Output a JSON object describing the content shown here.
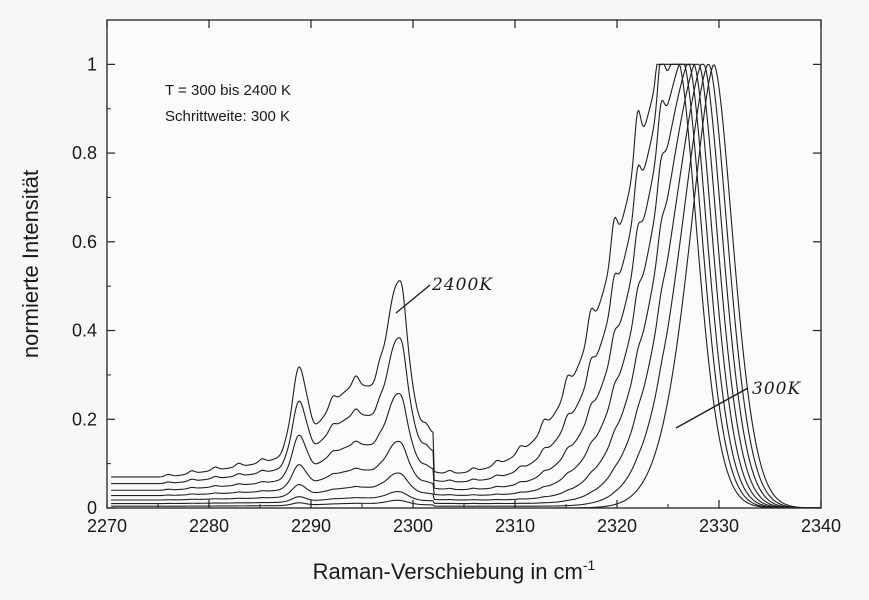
{
  "chart_data": {
    "type": "line",
    "title": "",
    "xlabel": "Raman-Verschiebung in cm",
    "xlabel_superscript": "-1",
    "ylabel": "normierte Intensität",
    "xlim": [
      2270,
      2340
    ],
    "ylim": [
      0,
      1.1
    ],
    "x_ticks": [
      "2270",
      "2280",
      "2290",
      "2300",
      "2310",
      "2320",
      "2330",
      "2340"
    ],
    "y_ticks": [
      "0",
      "0.2",
      "0.4",
      "0.6",
      "0.8",
      "1"
    ],
    "grid": false,
    "annotations": {
      "line1": "T = 300 bis 2400 K",
      "line2": "Schrittweite: 300 K",
      "label_hot": "2400K",
      "label_cold": "300K"
    },
    "series": [
      {
        "temperature_K": 300,
        "peak_x": 2329.5,
        "baseline": 0.0,
        "band_amp": 0.0,
        "ripple": 0.0
      },
      {
        "temperature_K": 600,
        "peak_x": 2329.0,
        "baseline": 0.004,
        "band_amp": 0.01,
        "ripple": 0.05
      },
      {
        "temperature_K": 900,
        "peak_x": 2328.5,
        "baseline": 0.01,
        "band_amp": 0.02,
        "ripple": 0.09
      },
      {
        "temperature_K": 1200,
        "peak_x": 2328.0,
        "baseline": 0.018,
        "band_amp": 0.045,
        "ripple": 0.13
      },
      {
        "temperature_K": 1500,
        "peak_x": 2327.5,
        "baseline": 0.028,
        "band_amp": 0.09,
        "ripple": 0.17
      },
      {
        "temperature_K": 1800,
        "peak_x": 2327.0,
        "baseline": 0.04,
        "band_amp": 0.16,
        "ripple": 0.21
      },
      {
        "temperature_K": 2100,
        "peak_x": 2326.5,
        "baseline": 0.055,
        "band_amp": 0.24,
        "ripple": 0.25
      },
      {
        "temperature_K": 2400,
        "peak_x": 2326.0,
        "baseline": 0.07,
        "band_amp": 0.32,
        "ripple": 0.3
      }
    ]
  }
}
